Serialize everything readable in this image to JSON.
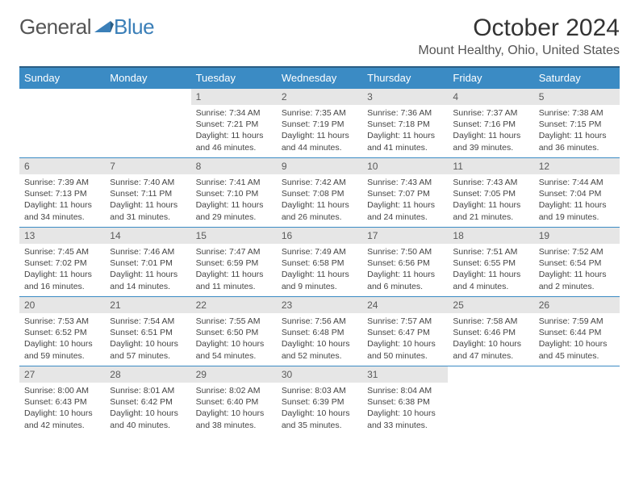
{
  "logo": {
    "part1": "General",
    "part2": "Blue"
  },
  "title": "October 2024",
  "location": "Mount Healthy, Ohio, United States",
  "colors": {
    "header_bg": "#3b8bc4",
    "header_border": "#2a5d84",
    "daynum_bg": "#e6e6e6",
    "cell_border": "#3b8bc4",
    "logo_blue": "#3b7fb8"
  },
  "dayNames": [
    "Sunday",
    "Monday",
    "Tuesday",
    "Wednesday",
    "Thursday",
    "Friday",
    "Saturday"
  ],
  "weeks": [
    [
      null,
      null,
      {
        "n": "1",
        "sr": "7:34 AM",
        "ss": "7:21 PM",
        "dl": "11 hours and 46 minutes."
      },
      {
        "n": "2",
        "sr": "7:35 AM",
        "ss": "7:19 PM",
        "dl": "11 hours and 44 minutes."
      },
      {
        "n": "3",
        "sr": "7:36 AM",
        "ss": "7:18 PM",
        "dl": "11 hours and 41 minutes."
      },
      {
        "n": "4",
        "sr": "7:37 AM",
        "ss": "7:16 PM",
        "dl": "11 hours and 39 minutes."
      },
      {
        "n": "5",
        "sr": "7:38 AM",
        "ss": "7:15 PM",
        "dl": "11 hours and 36 minutes."
      }
    ],
    [
      {
        "n": "6",
        "sr": "7:39 AM",
        "ss": "7:13 PM",
        "dl": "11 hours and 34 minutes."
      },
      {
        "n": "7",
        "sr": "7:40 AM",
        "ss": "7:11 PM",
        "dl": "11 hours and 31 minutes."
      },
      {
        "n": "8",
        "sr": "7:41 AM",
        "ss": "7:10 PM",
        "dl": "11 hours and 29 minutes."
      },
      {
        "n": "9",
        "sr": "7:42 AM",
        "ss": "7:08 PM",
        "dl": "11 hours and 26 minutes."
      },
      {
        "n": "10",
        "sr": "7:43 AM",
        "ss": "7:07 PM",
        "dl": "11 hours and 24 minutes."
      },
      {
        "n": "11",
        "sr": "7:43 AM",
        "ss": "7:05 PM",
        "dl": "11 hours and 21 minutes."
      },
      {
        "n": "12",
        "sr": "7:44 AM",
        "ss": "7:04 PM",
        "dl": "11 hours and 19 minutes."
      }
    ],
    [
      {
        "n": "13",
        "sr": "7:45 AM",
        "ss": "7:02 PM",
        "dl": "11 hours and 16 minutes."
      },
      {
        "n": "14",
        "sr": "7:46 AM",
        "ss": "7:01 PM",
        "dl": "11 hours and 14 minutes."
      },
      {
        "n": "15",
        "sr": "7:47 AM",
        "ss": "6:59 PM",
        "dl": "11 hours and 11 minutes."
      },
      {
        "n": "16",
        "sr": "7:49 AM",
        "ss": "6:58 PM",
        "dl": "11 hours and 9 minutes."
      },
      {
        "n": "17",
        "sr": "7:50 AM",
        "ss": "6:56 PM",
        "dl": "11 hours and 6 minutes."
      },
      {
        "n": "18",
        "sr": "7:51 AM",
        "ss": "6:55 PM",
        "dl": "11 hours and 4 minutes."
      },
      {
        "n": "19",
        "sr": "7:52 AM",
        "ss": "6:54 PM",
        "dl": "11 hours and 2 minutes."
      }
    ],
    [
      {
        "n": "20",
        "sr": "7:53 AM",
        "ss": "6:52 PM",
        "dl": "10 hours and 59 minutes."
      },
      {
        "n": "21",
        "sr": "7:54 AM",
        "ss": "6:51 PM",
        "dl": "10 hours and 57 minutes."
      },
      {
        "n": "22",
        "sr": "7:55 AM",
        "ss": "6:50 PM",
        "dl": "10 hours and 54 minutes."
      },
      {
        "n": "23",
        "sr": "7:56 AM",
        "ss": "6:48 PM",
        "dl": "10 hours and 52 minutes."
      },
      {
        "n": "24",
        "sr": "7:57 AM",
        "ss": "6:47 PM",
        "dl": "10 hours and 50 minutes."
      },
      {
        "n": "25",
        "sr": "7:58 AM",
        "ss": "6:46 PM",
        "dl": "10 hours and 47 minutes."
      },
      {
        "n": "26",
        "sr": "7:59 AM",
        "ss": "6:44 PM",
        "dl": "10 hours and 45 minutes."
      }
    ],
    [
      {
        "n": "27",
        "sr": "8:00 AM",
        "ss": "6:43 PM",
        "dl": "10 hours and 42 minutes."
      },
      {
        "n": "28",
        "sr": "8:01 AM",
        "ss": "6:42 PM",
        "dl": "10 hours and 40 minutes."
      },
      {
        "n": "29",
        "sr": "8:02 AM",
        "ss": "6:40 PM",
        "dl": "10 hours and 38 minutes."
      },
      {
        "n": "30",
        "sr": "8:03 AM",
        "ss": "6:39 PM",
        "dl": "10 hours and 35 minutes."
      },
      {
        "n": "31",
        "sr": "8:04 AM",
        "ss": "6:38 PM",
        "dl": "10 hours and 33 minutes."
      },
      null,
      null
    ]
  ],
  "labels": {
    "sunrise": "Sunrise: ",
    "sunset": "Sunset: ",
    "daylight": "Daylight: "
  }
}
